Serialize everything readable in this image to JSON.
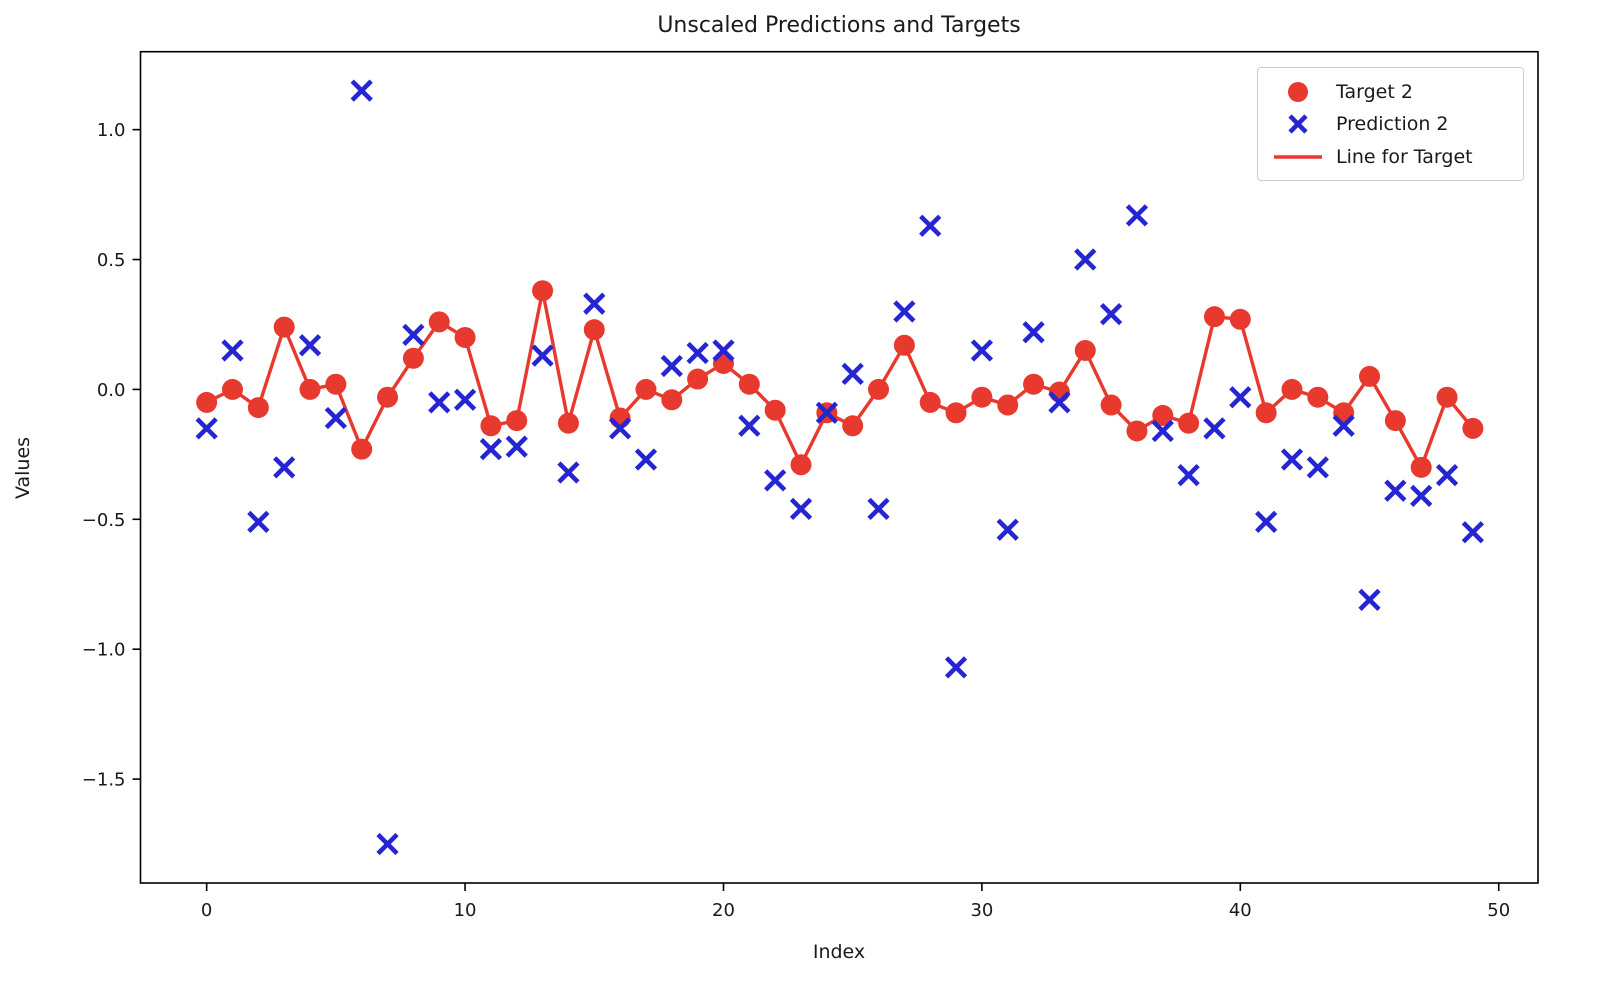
{
  "figure": {
    "title": "Unscaled Predictions and Targets",
    "xlabel": "Index",
    "ylabel": "Values"
  },
  "colors": {
    "target": "#e8392e",
    "prediction": "#2525d2",
    "axis": "#000000",
    "text": "#1a1a1a"
  },
  "legend": {
    "items": [
      {
        "label": "Target 2",
        "marker": "dot",
        "color": "#e8392e"
      },
      {
        "label": "Prediction 2",
        "marker": "x",
        "color": "#2525d2"
      },
      {
        "label": "Line for Target",
        "marker": "line",
        "color": "#e8392e"
      }
    ]
  },
  "chart_data": {
    "type": "scatter",
    "title": "Unscaled Predictions and Targets",
    "xlabel": "Index",
    "ylabel": "Values",
    "grid": false,
    "legend_position": "upper right",
    "xlim": [
      -2.56,
      51.52
    ],
    "ylim": [
      -1.9,
      1.3
    ],
    "xticks": {
      "values": [
        0,
        10,
        20,
        30,
        40,
        50
      ],
      "labels": [
        "0",
        "10",
        "20",
        "30",
        "40",
        "50"
      ]
    },
    "yticks": {
      "values": [
        1.0,
        0.5,
        0.0,
        -0.5,
        -1.0,
        -1.5
      ],
      "labels": [
        "1.0",
        "0.5",
        "0.0",
        "−0.5",
        "−1.0",
        "−1.5"
      ]
    },
    "x": [
      0,
      1,
      2,
      3,
      4,
      5,
      6,
      7,
      8,
      9,
      10,
      11,
      12,
      13,
      14,
      15,
      16,
      17,
      18,
      19,
      20,
      21,
      22,
      23,
      24,
      25,
      26,
      27,
      28,
      29,
      30,
      31,
      32,
      33,
      34,
      35,
      36,
      37,
      38,
      39,
      40,
      41,
      42,
      43,
      44,
      45,
      46,
      47,
      48,
      49
    ],
    "series": [
      {
        "name": "Target 2",
        "marker": "circle",
        "color": "#e8392e",
        "connect_line": true,
        "values": [
          -0.05,
          0.0,
          -0.07,
          0.24,
          0.0,
          0.02,
          -0.23,
          -0.03,
          0.12,
          0.26,
          0.2,
          -0.14,
          -0.12,
          0.38,
          -0.13,
          0.23,
          -0.11,
          0.0,
          -0.04,
          0.04,
          0.1,
          0.02,
          -0.08,
          -0.29,
          -0.09,
          -0.14,
          0.0,
          0.17,
          -0.05,
          -0.09,
          -0.03,
          -0.06,
          0.02,
          -0.01,
          0.15,
          -0.06,
          -0.16,
          -0.1,
          -0.13,
          0.28,
          0.27,
          -0.09,
          0.0,
          -0.03,
          -0.09,
          0.05,
          -0.12,
          -0.3,
          -0.03,
          -0.15
        ]
      },
      {
        "name": "Prediction 2",
        "marker": "x",
        "color": "#2525d2",
        "connect_line": false,
        "values": [
          -0.15,
          0.15,
          -0.51,
          -0.3,
          0.17,
          -0.11,
          1.15,
          -1.75,
          0.21,
          -0.05,
          -0.04,
          -0.23,
          -0.22,
          0.13,
          -0.32,
          0.33,
          -0.15,
          -0.27,
          0.09,
          0.14,
          0.15,
          -0.14,
          -0.35,
          -0.46,
          -0.09,
          0.06,
          -0.46,
          0.3,
          0.63,
          -1.07,
          0.15,
          -0.54,
          0.22,
          -0.05,
          0.5,
          0.29,
          0.67,
          -0.16,
          -0.33,
          -0.15,
          -0.03,
          -0.51,
          -0.27,
          -0.3,
          -0.14,
          -0.81,
          -0.39,
          -0.41,
          -0.33,
          -0.55
        ]
      }
    ]
  }
}
